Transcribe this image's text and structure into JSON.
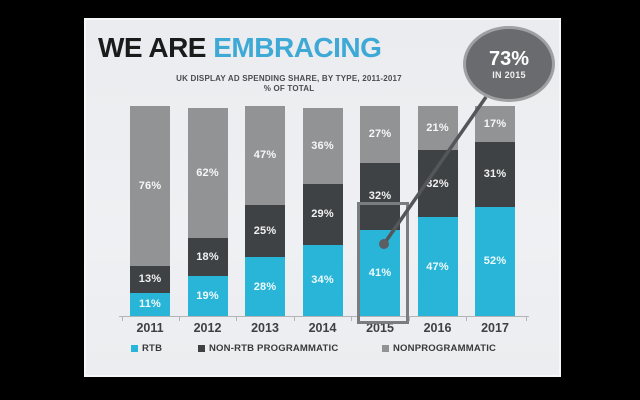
{
  "slide": {
    "title": {
      "prefix": "WE ARE",
      "highlight": "EMBRACING"
    },
    "subtitle_line1": "UK DISPLAY AD SPENDING SHARE, BY TYPE, 2011-2017",
    "subtitle_line2": "% OF TOTAL",
    "callout": {
      "value": "73%",
      "label": "IN 2015"
    }
  },
  "chart_data": {
    "type": "bar",
    "stacked": true,
    "title": "UK DISPLAY AD SPENDING SHARE, BY TYPE, 2011-2017 % OF TOTAL",
    "categories": [
      "2011",
      "2012",
      "2013",
      "2014",
      "2015",
      "2016",
      "2017"
    ],
    "series": [
      {
        "key": "rtb",
        "name": "RTB",
        "color": "#28b5d8",
        "values": [
          11,
          19,
          28,
          34,
          41,
          47,
          52
        ]
      },
      {
        "key": "non-rtb-programmatic",
        "name": "NON-RTB PROGRAMMATIC",
        "color": "#3f4244",
        "values": [
          13,
          18,
          25,
          29,
          32,
          32,
          31
        ]
      },
      {
        "key": "nonprogrammatic",
        "name": "NONPROGRAMMATIC",
        "color": "#919395",
        "values": [
          76,
          62,
          47,
          36,
          27,
          21,
          17
        ]
      }
    ],
    "value_suffix": "%",
    "ylim": [
      0,
      100
    ],
    "legend_position": "bottom",
    "highlighted_category": "2015",
    "annotation": {
      "text": "73% IN 2015",
      "target_category": "2015"
    }
  },
  "colors": {
    "title_highlight": "#3fa9d6",
    "slide_background": "#edeff2",
    "stage_background": "#000000",
    "callout_fill": "#696b6e",
    "callout_border": "#9ea0a2",
    "connector": "#54565a",
    "highlight_box_border": "#7a7d80"
  }
}
